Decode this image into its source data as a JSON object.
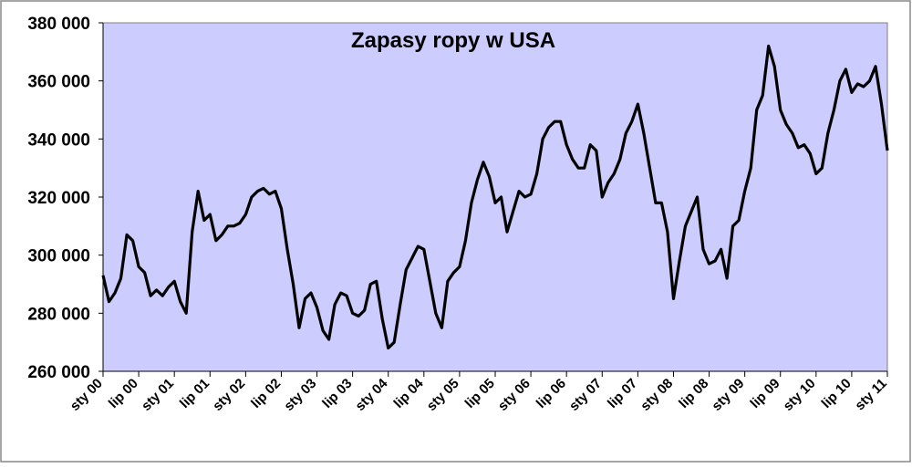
{
  "chart_data": {
    "type": "line",
    "title": "Zapasy ropy w USA",
    "categories": [
      "sty 00",
      null,
      null,
      null,
      null,
      null,
      "lip 00",
      null,
      null,
      null,
      null,
      null,
      "sty 01",
      null,
      null,
      null,
      null,
      null,
      "lip 01",
      null,
      null,
      null,
      null,
      null,
      "sty 02",
      null,
      null,
      null,
      null,
      null,
      "lip 02",
      null,
      null,
      null,
      null,
      null,
      "sty 03",
      null,
      null,
      null,
      null,
      null,
      "lip 03",
      null,
      null,
      null,
      null,
      null,
      "sty 04",
      null,
      null,
      null,
      null,
      null,
      "lip 04",
      null,
      null,
      null,
      null,
      null,
      "sty 05",
      null,
      null,
      null,
      null,
      null,
      "lip 05",
      null,
      null,
      null,
      null,
      null,
      "sty 06",
      null,
      null,
      null,
      null,
      null,
      "lip 06",
      null,
      null,
      null,
      null,
      null,
      "sty 07",
      null,
      null,
      null,
      null,
      null,
      "lip 07",
      null,
      null,
      null,
      null,
      null,
      "sty 08",
      null,
      null,
      null,
      null,
      null,
      "lip 08",
      null,
      null,
      null,
      null,
      null,
      "sty 09",
      null,
      null,
      null,
      null,
      null,
      "lip 09",
      null,
      null,
      null,
      null,
      null,
      "sty 10",
      null,
      null,
      null,
      null,
      null,
      "lip 10",
      null,
      null,
      null,
      null,
      null,
      "sty 11"
    ],
    "values": [
      293000,
      284000,
      287000,
      292000,
      307000,
      305000,
      296000,
      294000,
      286000,
      288000,
      286000,
      289000,
      291000,
      284000,
      280000,
      308000,
      322000,
      312000,
      314000,
      305000,
      307000,
      310000,
      310000,
      311000,
      314000,
      320000,
      322000,
      323000,
      321000,
      322000,
      316000,
      302000,
      290000,
      275000,
      285000,
      287000,
      282000,
      274000,
      271000,
      283000,
      287000,
      286000,
      280000,
      279000,
      281000,
      290000,
      291000,
      278000,
      268000,
      270000,
      283000,
      295000,
      299000,
      303000,
      302000,
      291000,
      280000,
      275000,
      291000,
      294000,
      296000,
      305000,
      318000,
      326000,
      332000,
      327000,
      318000,
      320000,
      308000,
      315000,
      322000,
      320000,
      321000,
      328000,
      340000,
      344000,
      346000,
      346000,
      338000,
      333000,
      330000,
      330000,
      338000,
      336000,
      320000,
      325000,
      328000,
      333000,
      342000,
      346000,
      352000,
      342000,
      330000,
      318000,
      318000,
      308000,
      285000,
      298000,
      310000,
      315000,
      320000,
      302000,
      297000,
      298000,
      302000,
      292000,
      310000,
      312000,
      322000,
      330000,
      350000,
      355000,
      372000,
      365000,
      350000,
      345000,
      342000,
      337000,
      338000,
      335000,
      328000,
      330000,
      342000,
      350000,
      360000,
      364000,
      356000,
      359000,
      358000,
      360000,
      365000,
      352000,
      336000
    ],
    "color": "#000000",
    "background": "#ccccff",
    "ylim": [
      260000,
      380000
    ],
    "yticks": [
      {
        "value": 260000,
        "label": "260 000"
      },
      {
        "value": 280000,
        "label": "280 000"
      },
      {
        "value": 300000,
        "label": "300 000"
      },
      {
        "value": 320000,
        "label": "320 000"
      },
      {
        "value": 340000,
        "label": "340 000"
      },
      {
        "value": 360000,
        "label": "360 000"
      },
      {
        "value": 380000,
        "label": "380 000"
      }
    ],
    "grid": false
  }
}
